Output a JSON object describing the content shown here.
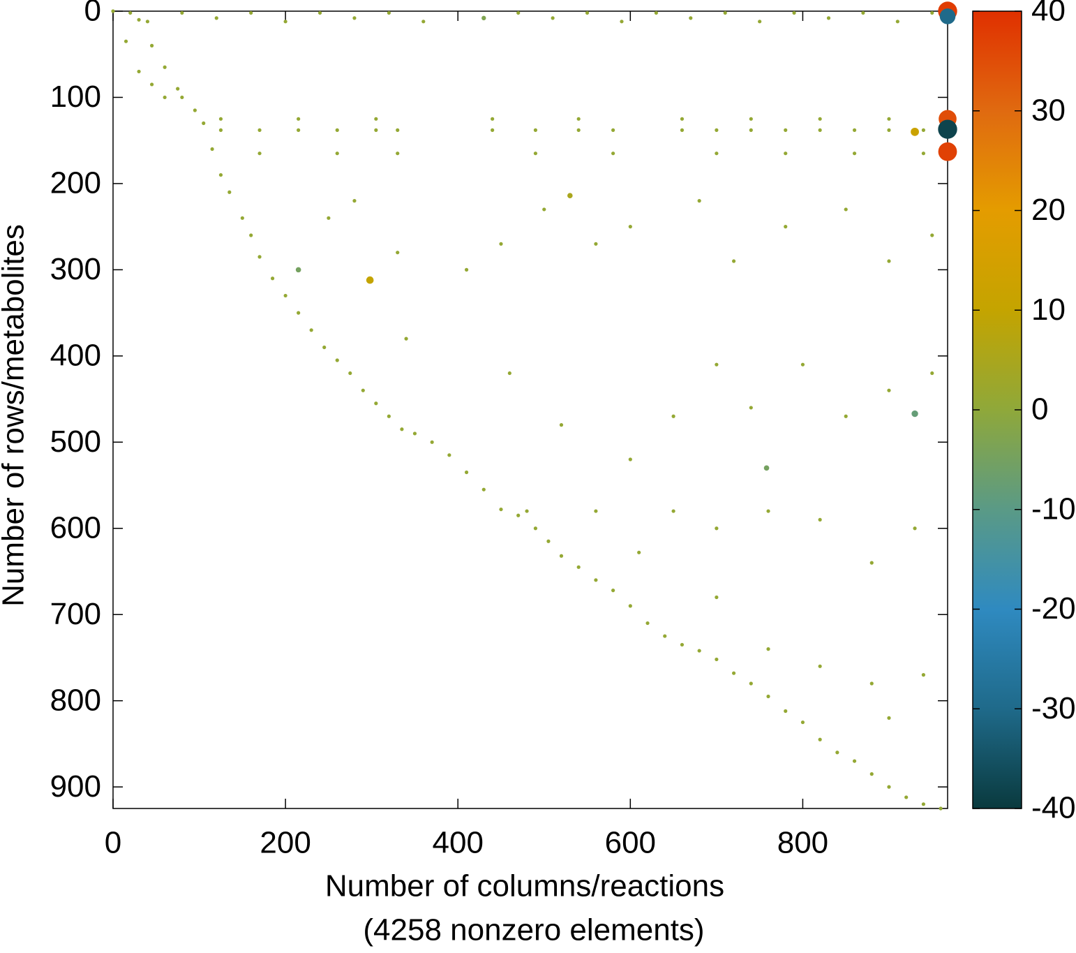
{
  "chart_data": {
    "type": "scatter",
    "xlabel": "Number of columns/reactions",
    "annotation": "(4258 nonzero elements)",
    "ylabel": "Number of rows/metabolites",
    "xlim": [
      0,
      968
    ],
    "ylim": [
      925,
      0
    ],
    "xticks": [
      0,
      200,
      400,
      600,
      800
    ],
    "yticks": [
      0,
      100,
      200,
      300,
      400,
      500,
      600,
      700,
      800,
      900
    ],
    "clim": [
      -40,
      40
    ],
    "cticks": [
      -40,
      -30,
      -20,
      -10,
      0,
      10,
      20,
      30,
      40
    ],
    "colormap": [
      "#0a3a3e",
      "#1f6a8a",
      "#2f8ac0",
      "#5a9a86",
      "#8fa83a",
      "#c4a400",
      "#e49c00",
      "#e06a10",
      "#e03000"
    ],
    "x": [
      0,
      15,
      30,
      45,
      60,
      80,
      95,
      105,
      115,
      125,
      135,
      150,
      160,
      170,
      185,
      200,
      215,
      230,
      245,
      260,
      275,
      290,
      305,
      320,
      335,
      350,
      370,
      390,
      410,
      430,
      450,
      470,
      490,
      505,
      520,
      540,
      560,
      580,
      600,
      620,
      640,
      660,
      680,
      700,
      720,
      740,
      760,
      780,
      800,
      820,
      840,
      860,
      880,
      900,
      920,
      940,
      960,
      30,
      45,
      60,
      75,
      20,
      40,
      80,
      120,
      160,
      200,
      240,
      280,
      320,
      360,
      470,
      510,
      550,
      590,
      630,
      670,
      710,
      750,
      790,
      830,
      870,
      910,
      950,
      125,
      170,
      215,
      260,
      305,
      330,
      440,
      490,
      540,
      580,
      660,
      700,
      740,
      780,
      820,
      860,
      900,
      940,
      125,
      215,
      305,
      440,
      540,
      660,
      740,
      820,
      900,
      170,
      260,
      330,
      490,
      580,
      700,
      780,
      860,
      940,
      250,
      280,
      330,
      410,
      450,
      500,
      560,
      600,
      680,
      720,
      780,
      850,
      900,
      950,
      340,
      460,
      520,
      600,
      650,
      700,
      740,
      800,
      850,
      900,
      950,
      480,
      560,
      610,
      650,
      700,
      760,
      820,
      880,
      930,
      700,
      760,
      820,
      880,
      940,
      900,
      968,
      968,
      968,
      968,
      968,
      930,
      930,
      298,
      215,
      430,
      758,
      530
    ],
    "y": [
      0,
      35,
      70,
      85,
      100,
      100,
      115,
      130,
      160,
      190,
      210,
      240,
      260,
      285,
      310,
      330,
      350,
      370,
      390,
      405,
      420,
      440,
      455,
      470,
      485,
      490,
      500,
      515,
      535,
      555,
      578,
      585,
      600,
      615,
      632,
      645,
      660,
      672,
      690,
      710,
      725,
      735,
      742,
      752,
      768,
      780,
      795,
      812,
      825,
      845,
      860,
      870,
      885,
      900,
      912,
      920,
      925,
      10,
      40,
      65,
      90,
      2,
      12,
      2,
      8,
      2,
      12,
      2,
      8,
      2,
      12,
      2,
      8,
      2,
      12,
      2,
      8,
      2,
      12,
      2,
      8,
      2,
      12,
      2,
      138,
      138,
      138,
      138,
      138,
      138,
      138,
      138,
      138,
      138,
      138,
      138,
      138,
      138,
      138,
      138,
      138,
      138,
      125,
      125,
      125,
      125,
      125,
      125,
      125,
      125,
      125,
      165,
      165,
      165,
      165,
      165,
      165,
      165,
      165,
      165,
      240,
      220,
      280,
      300,
      270,
      230,
      270,
      250,
      220,
      290,
      250,
      230,
      290,
      260,
      380,
      420,
      480,
      520,
      470,
      410,
      460,
      410,
      470,
      440,
      420,
      580,
      580,
      628,
      580,
      600,
      580,
      590,
      640,
      600,
      680,
      740,
      760,
      780,
      770,
      820,
      0,
      6,
      125,
      137,
      163,
      140,
      467,
      312,
      300,
      8,
      530,
      214
    ],
    "values": [
      1,
      1,
      1,
      1,
      1,
      1,
      1,
      1,
      1,
      1,
      1,
      1,
      1,
      1,
      1,
      1,
      1,
      1,
      1,
      1,
      1,
      1,
      1,
      1,
      1,
      1,
      1,
      1,
      1,
      1,
      1,
      1,
      1,
      1,
      1,
      1,
      1,
      1,
      1,
      1,
      1,
      1,
      1,
      1,
      1,
      1,
      1,
      1,
      1,
      1,
      1,
      1,
      1,
      1,
      1,
      1,
      1,
      1,
      1,
      1,
      1,
      1,
      1,
      1,
      1,
      1,
      1,
      1,
      1,
      1,
      1,
      1,
      1,
      1,
      1,
      1,
      1,
      1,
      1,
      1,
      1,
      1,
      1,
      1,
      1,
      1,
      1,
      1,
      1,
      1,
      1,
      1,
      1,
      1,
      1,
      1,
      1,
      1,
      1,
      1,
      1,
      1,
      1,
      1,
      1,
      1,
      1,
      1,
      1,
      1,
      1,
      1,
      1,
      1,
      1,
      1,
      1,
      1,
      1,
      1,
      1,
      1,
      1,
      1,
      1,
      1,
      1,
      1,
      1,
      1,
      1,
      1,
      1,
      1,
      1,
      1,
      1,
      1,
      1,
      1,
      1,
      1,
      1,
      1,
      1,
      1,
      1,
      1,
      1,
      1,
      1,
      1,
      1,
      1,
      1,
      1,
      1,
      1,
      1,
      1,
      38,
      -30,
      35,
      -38,
      37,
      12,
      -8,
      10,
      -5,
      -3,
      -5,
      5
    ]
  }
}
